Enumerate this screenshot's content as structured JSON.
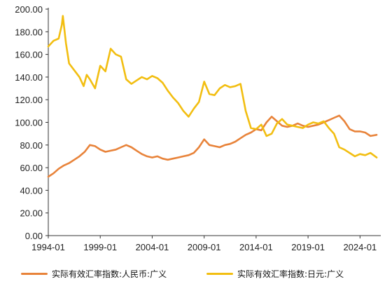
{
  "chart_data": {
    "type": "line",
    "title": "",
    "xlabel": "",
    "ylabel": "",
    "ylim": [
      0,
      200
    ],
    "xlim": [
      1994,
      2026
    ],
    "y_ticks": [
      "0.00",
      "20.00",
      "40.00",
      "60.00",
      "80.00",
      "100.00",
      "120.00",
      "140.00",
      "160.00",
      "180.00",
      "200.00"
    ],
    "x_ticks": [
      {
        "label": "1994-01",
        "x": 1994
      },
      {
        "label": "1999-01",
        "x": 1999
      },
      {
        "label": "2004-01",
        "x": 2004
      },
      {
        "label": "2009-01",
        "x": 2009
      },
      {
        "label": "2014-01",
        "x": 2014
      },
      {
        "label": "2019-01",
        "x": 2019
      },
      {
        "label": "2024-01",
        "x": 2024
      }
    ],
    "grid": false,
    "legend_position": "bottom",
    "series": [
      {
        "name": "实际有效汇率指数:人民币:广义",
        "color": "#E8833A",
        "points": [
          [
            1994.0,
            52
          ],
          [
            1994.5,
            55
          ],
          [
            1995.0,
            59
          ],
          [
            1995.5,
            62
          ],
          [
            1996.0,
            64
          ],
          [
            1996.5,
            67
          ],
          [
            1997.0,
            70
          ],
          [
            1997.5,
            74
          ],
          [
            1998.0,
            80
          ],
          [
            1998.5,
            79
          ],
          [
            1999.0,
            76
          ],
          [
            1999.5,
            74
          ],
          [
            2000.0,
            75
          ],
          [
            2000.5,
            76
          ],
          [
            2001.0,
            78
          ],
          [
            2001.5,
            80
          ],
          [
            2002.0,
            78
          ],
          [
            2002.5,
            75
          ],
          [
            2003.0,
            72
          ],
          [
            2003.5,
            70
          ],
          [
            2004.0,
            69
          ],
          [
            2004.5,
            70
          ],
          [
            2005.0,
            68
          ],
          [
            2005.5,
            67
          ],
          [
            2006.0,
            68
          ],
          [
            2006.5,
            69
          ],
          [
            2007.0,
            70
          ],
          [
            2007.5,
            71
          ],
          [
            2008.0,
            73
          ],
          [
            2008.5,
            78
          ],
          [
            2009.0,
            85
          ],
          [
            2009.5,
            80
          ],
          [
            2010.0,
            79
          ],
          [
            2010.5,
            78
          ],
          [
            2011.0,
            80
          ],
          [
            2011.5,
            81
          ],
          [
            2012.0,
            83
          ],
          [
            2012.5,
            86
          ],
          [
            2013.0,
            89
          ],
          [
            2013.5,
            91
          ],
          [
            2014.0,
            94
          ],
          [
            2014.5,
            93
          ],
          [
            2015.0,
            100
          ],
          [
            2015.5,
            105
          ],
          [
            2016.0,
            101
          ],
          [
            2016.5,
            97
          ],
          [
            2017.0,
            96
          ],
          [
            2017.5,
            97
          ],
          [
            2018.0,
            99
          ],
          [
            2018.5,
            97
          ],
          [
            2019.0,
            96
          ],
          [
            2019.5,
            97
          ],
          [
            2020.0,
            98
          ],
          [
            2020.5,
            100
          ],
          [
            2021.0,
            102
          ],
          [
            2021.5,
            104
          ],
          [
            2022.0,
            106
          ],
          [
            2022.5,
            101
          ],
          [
            2023.0,
            94
          ],
          [
            2023.5,
            92
          ],
          [
            2024.0,
            92
          ],
          [
            2024.5,
            91
          ],
          [
            2025.0,
            88
          ],
          [
            2025.6,
            89
          ]
        ]
      },
      {
        "name": "实际有效汇率指数:日元:广义",
        "color": "#F2BE11",
        "points": [
          [
            1994.0,
            167
          ],
          [
            1994.5,
            172
          ],
          [
            1995.0,
            174
          ],
          [
            1995.3,
            186
          ],
          [
            1995.4,
            194
          ],
          [
            1995.7,
            170
          ],
          [
            1996.0,
            152
          ],
          [
            1996.5,
            146
          ],
          [
            1997.0,
            140
          ],
          [
            1997.4,
            132
          ],
          [
            1997.7,
            142
          ],
          [
            1998.0,
            138
          ],
          [
            1998.5,
            130
          ],
          [
            1998.8,
            142
          ],
          [
            1999.0,
            150
          ],
          [
            1999.5,
            145
          ],
          [
            2000.0,
            165
          ],
          [
            2000.5,
            160
          ],
          [
            2001.0,
            158
          ],
          [
            2001.5,
            138
          ],
          [
            2002.0,
            134
          ],
          [
            2002.5,
            137
          ],
          [
            2003.0,
            140
          ],
          [
            2003.5,
            138
          ],
          [
            2004.0,
            141
          ],
          [
            2004.5,
            139
          ],
          [
            2005.0,
            135
          ],
          [
            2005.5,
            128
          ],
          [
            2006.0,
            122
          ],
          [
            2006.5,
            117
          ],
          [
            2007.0,
            110
          ],
          [
            2007.5,
            105
          ],
          [
            2008.0,
            112
          ],
          [
            2008.5,
            118
          ],
          [
            2009.0,
            136
          ],
          [
            2009.5,
            125
          ],
          [
            2010.0,
            124
          ],
          [
            2010.5,
            130
          ],
          [
            2011.0,
            133
          ],
          [
            2011.5,
            131
          ],
          [
            2012.0,
            132
          ],
          [
            2012.5,
            134
          ],
          [
            2013.0,
            110
          ],
          [
            2013.5,
            95
          ],
          [
            2014.0,
            94
          ],
          [
            2014.5,
            98
          ],
          [
            2015.0,
            88
          ],
          [
            2015.5,
            90
          ],
          [
            2016.0,
            99
          ],
          [
            2016.5,
            103
          ],
          [
            2017.0,
            98
          ],
          [
            2017.5,
            97
          ],
          [
            2018.0,
            96
          ],
          [
            2018.5,
            95
          ],
          [
            2019.0,
            98
          ],
          [
            2019.5,
            100
          ],
          [
            2020.0,
            99
          ],
          [
            2020.5,
            101
          ],
          [
            2021.0,
            95
          ],
          [
            2021.5,
            90
          ],
          [
            2022.0,
            78
          ],
          [
            2022.5,
            76
          ],
          [
            2023.0,
            73
          ],
          [
            2023.5,
            70
          ],
          [
            2024.0,
            72
          ],
          [
            2024.5,
            71
          ],
          [
            2025.0,
            73
          ],
          [
            2025.6,
            69
          ]
        ]
      }
    ]
  }
}
